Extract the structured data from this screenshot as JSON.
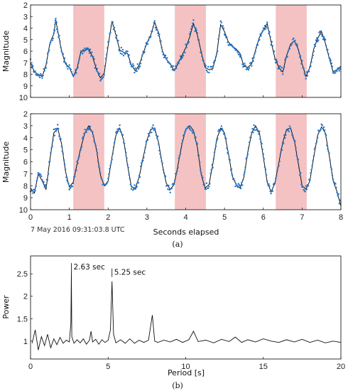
{
  "chart_data": [
    {
      "type": "line",
      "panel": "a-top",
      "xlim": [
        0,
        8
      ],
      "ylim": [
        2,
        10
      ],
      "y_inverted": true,
      "ylabel": "Magnitude",
      "y_ticks": [
        "2",
        "3",
        "4",
        "5",
        "6",
        "7",
        "8",
        "9",
        "10"
      ],
      "shaded_intervals": [
        [
          1.1,
          1.9
        ],
        [
          3.72,
          4.52
        ],
        [
          6.32,
          7.12
        ]
      ],
      "shade_color": "#f4c2c2",
      "model_color": "#111111",
      "points_color": "#1f77d0",
      "series": [
        {
          "values_x": [
            0.0,
            0.1,
            0.2,
            0.3,
            0.4,
            0.5,
            0.6,
            0.65,
            0.7,
            0.8,
            0.9,
            1.0,
            1.1,
            1.2,
            1.3,
            1.4,
            1.5,
            1.6,
            1.7,
            1.8,
            1.9,
            2.0,
            2.1,
            2.2,
            2.3,
            2.4,
            2.5,
            2.6,
            2.7,
            2.8,
            2.9,
            3.0,
            3.1,
            3.2,
            3.3,
            3.4,
            3.5,
            3.6,
            3.7,
            3.8,
            3.9,
            4.0,
            4.1,
            4.2,
            4.3,
            4.4,
            4.5,
            4.6,
            4.7,
            4.8,
            4.9,
            5.0,
            5.1,
            5.2,
            5.3,
            5.4,
            5.5,
            5.6,
            5.7,
            5.8,
            5.9,
            6.0,
            6.1,
            6.2,
            6.3,
            6.4,
            6.5,
            6.6,
            6.7,
            6.8,
            6.9,
            7.0,
            7.1,
            7.2,
            7.3,
            7.4,
            7.5,
            7.6,
            7.7,
            7.8,
            7.9,
            8.0
          ],
          "values": [
            7.0,
            7.8,
            8.0,
            8.2,
            7.2,
            5.3,
            4.5,
            3.3,
            4.2,
            6.0,
            7.1,
            7.4,
            8.2,
            7.5,
            6.0,
            5.9,
            5.8,
            6.5,
            7.6,
            8.3,
            7.9,
            5.5,
            3.4,
            4.6,
            5.9,
            6.1,
            6.2,
            7.2,
            7.7,
            7.2,
            6.2,
            5.3,
            4.6,
            3.5,
            4.4,
            6.0,
            6.7,
            7.1,
            7.7,
            7.1,
            6.4,
            5.7,
            4.8,
            3.6,
            4.6,
            6.1,
            7.4,
            7.6,
            7.5,
            6.2,
            3.7,
            4.3,
            5.2,
            5.6,
            5.8,
            6.2,
            7.3,
            7.4,
            7.1,
            5.9,
            4.8,
            4.2,
            3.6,
            5.2,
            6.6,
            7.4,
            7.8,
            6.4,
            5.4,
            5.1,
            5.8,
            7.1,
            8.2,
            7.4,
            5.8,
            4.9,
            4.3,
            5.3,
            6.6,
            7.8,
            7.6,
            7.3
          ]
        }
      ]
    },
    {
      "type": "line",
      "panel": "a-bottom",
      "xlim": [
        0,
        8
      ],
      "ylim": [
        2,
        10
      ],
      "y_inverted": true,
      "xlabel": "Seconds elapsed",
      "ylabel": "Magnitude",
      "x_ticks": [
        "0",
        "1",
        "2",
        "3",
        "4",
        "5",
        "6",
        "7",
        "8"
      ],
      "y_ticks": [
        "2",
        "3",
        "4",
        "5",
        "6",
        "7",
        "8",
        "9",
        "10"
      ],
      "shaded_intervals": [
        [
          1.1,
          1.9
        ],
        [
          3.72,
          4.52
        ],
        [
          6.32,
          7.12
        ]
      ],
      "series": [
        {
          "values_x": [
            0.0,
            0.1,
            0.2,
            0.3,
            0.4,
            0.5,
            0.6,
            0.7,
            0.8,
            0.9,
            1.0,
            1.1,
            1.2,
            1.3,
            1.4,
            1.5,
            1.6,
            1.7,
            1.8,
            1.9,
            2.0,
            2.1,
            2.2,
            2.3,
            2.4,
            2.5,
            2.6,
            2.7,
            2.8,
            2.9,
            3.0,
            3.1,
            3.2,
            3.3,
            3.4,
            3.5,
            3.6,
            3.7,
            3.8,
            3.9,
            4.0,
            4.1,
            4.2,
            4.3,
            4.4,
            4.5,
            4.6,
            4.7,
            4.8,
            4.9,
            5.0,
            5.1,
            5.2,
            5.3,
            5.4,
            5.5,
            5.6,
            5.7,
            5.8,
            5.9,
            6.0,
            6.1,
            6.2,
            6.3,
            6.4,
            6.5,
            6.6,
            6.7,
            6.8,
            6.9,
            7.0,
            7.1,
            7.2,
            7.3,
            7.4,
            7.5,
            7.6,
            7.7,
            7.8,
            7.9,
            8.0
          ],
          "values": [
            8.2,
            8.6,
            7.0,
            7.6,
            8.3,
            5.8,
            3.6,
            3.2,
            4.5,
            6.8,
            8.1,
            7.7,
            6.2,
            4.8,
            3.6,
            3.0,
            3.6,
            5.0,
            7.1,
            8.0,
            7.6,
            5.6,
            3.8,
            3.2,
            4.2,
            6.3,
            8.1,
            8.2,
            7.3,
            5.7,
            4.2,
            3.3,
            3.2,
            4.4,
            6.3,
            7.8,
            8.3,
            7.9,
            6.3,
            4.6,
            3.3,
            3.0,
            3.4,
            4.8,
            7.1,
            8.2,
            7.9,
            6.2,
            4.1,
            3.2,
            3.6,
            5.3,
            7.2,
            7.9,
            8.2,
            7.3,
            5.2,
            3.6,
            3.0,
            3.6,
            5.6,
            7.7,
            8.5,
            7.8,
            6.1,
            4.4,
            3.3,
            3.2,
            4.2,
            6.1,
            8.0,
            8.3,
            7.6,
            5.6,
            3.8,
            3.1,
            3.6,
            5.5,
            7.6,
            8.5,
            9.7
          ]
        }
      ]
    },
    {
      "type": "line",
      "panel": "b",
      "xlim": [
        0,
        20
      ],
      "ylim": [
        0.6,
        2.9
      ],
      "xlabel": "Period [s]",
      "ylabel": "Power",
      "x_ticks": [
        "0",
        "5",
        "10",
        "15",
        "20"
      ],
      "y_ticks": [
        "1",
        "1.5",
        "2",
        "2.5"
      ],
      "annotations": [
        {
          "x": 2.63,
          "y": 2.55,
          "text": "2.63 sec"
        },
        {
          "x": 5.25,
          "y": 2.43,
          "text": "5.25 sec"
        }
      ],
      "series": [
        {
          "values_x": [
            0.1,
            0.3,
            0.5,
            0.7,
            0.9,
            1.1,
            1.3,
            1.5,
            1.7,
            1.9,
            2.1,
            2.3,
            2.5,
            2.6,
            2.63,
            2.66,
            2.8,
            3.0,
            3.2,
            3.4,
            3.6,
            3.8,
            3.9,
            4.0,
            4.2,
            4.4,
            4.6,
            4.8,
            5.0,
            5.15,
            5.25,
            5.35,
            5.5,
            5.8,
            6.1,
            6.4,
            6.7,
            7.0,
            7.3,
            7.6,
            7.85,
            8.0,
            8.2,
            8.6,
            9.0,
            9.4,
            9.8,
            10.2,
            10.5,
            10.8,
            11.3,
            11.8,
            12.3,
            12.8,
            13.2,
            13.6,
            14.0,
            14.5,
            15.0,
            15.5,
            16.0,
            16.5,
            17.0,
            17.5,
            18.0,
            18.5,
            19.0,
            19.5,
            20.0
          ],
          "values": [
            0.95,
            1.25,
            0.8,
            1.1,
            0.9,
            1.15,
            0.85,
            1.05,
            0.92,
            1.08,
            0.95,
            1.02,
            0.98,
            1.4,
            2.55,
            1.1,
            0.95,
            1.03,
            0.96,
            1.05,
            0.93,
            1.02,
            1.22,
            0.98,
            1.04,
            0.93,
            1.03,
            0.97,
            1.02,
            1.25,
            2.33,
            1.15,
            0.96,
            1.03,
            0.95,
            1.05,
            0.95,
            1.02,
            0.97,
            1.02,
            1.58,
            1.0,
            0.97,
            1.02,
            0.98,
            1.04,
            0.97,
            1.03,
            1.22,
            0.99,
            1.02,
            0.96,
            1.04,
            0.99,
            1.09,
            0.97,
            1.03,
            0.98,
            1.05,
            1.0,
            0.97,
            1.03,
            0.98,
            1.04,
            0.97,
            1.02,
            0.96,
            1.0,
            0.97
          ]
        }
      ]
    }
  ],
  "labels": {
    "a_top_ylabel": "Magnitude",
    "a_bottom_ylabel": "Magnitude",
    "a_xlabel": "Seconds elapsed",
    "a_timestamp": "7 May 2016   09:31:03.8 UTC",
    "a_caption": "(a)",
    "b_ylabel": "Power",
    "b_xlabel": "Period [s]",
    "b_caption": "(b)",
    "peak1": "2.63 sec",
    "peak2": "5.25 sec"
  }
}
